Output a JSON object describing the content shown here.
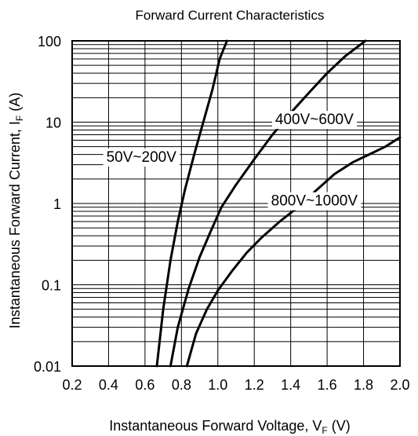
{
  "chart_data": {
    "type": "line",
    "title": "Forward Current Characteristics",
    "xlabel": {
      "main": "Instantaneous Forward Voltage, V",
      "sub": "F",
      "unit": " (V)"
    },
    "ylabel": {
      "main": "Instantaneous Forward Current, I",
      "sub": "F",
      "unit": " (A)"
    },
    "x_scale": "linear",
    "y_scale": "log",
    "xlim": [
      0.2,
      2.0
    ],
    "ylim": [
      0.01,
      100
    ],
    "x_ticks": [
      "0.2",
      "0.4",
      "0.6",
      "0.8",
      "1.0",
      "1.2",
      "1.4",
      "1.6",
      "1.8",
      "2.0"
    ],
    "y_ticks": [
      "0.01",
      "0.1",
      "1",
      "10",
      "100"
    ],
    "grid": true,
    "series": [
      {
        "name": "50V~200V",
        "x": [
          0.665,
          0.7,
          0.74,
          0.78,
          0.82,
          0.87,
          0.92,
          0.97,
          1.01,
          1.05
        ],
        "y": [
          0.01,
          0.05,
          0.2,
          0.6,
          1.5,
          4,
          10,
          25,
          60,
          100
        ]
      },
      {
        "name": "400V~600V",
        "x": [
          0.74,
          0.78,
          0.84,
          0.9,
          0.96,
          1.02,
          1.1,
          1.2,
          1.3,
          1.4,
          1.5,
          1.6,
          1.7,
          1.81
        ],
        "y": [
          0.01,
          0.03,
          0.09,
          0.22,
          0.45,
          0.9,
          1.7,
          3.5,
          7,
          13,
          23,
          40,
          65,
          100
        ]
      },
      {
        "name": "800V~1000V",
        "x": [
          0.83,
          0.88,
          0.94,
          1.0,
          1.08,
          1.16,
          1.24,
          1.34,
          1.44,
          1.54,
          1.64,
          1.74,
          1.84,
          1.92,
          2.0
        ],
        "y": [
          0.01,
          0.025,
          0.05,
          0.085,
          0.15,
          0.25,
          0.38,
          0.6,
          0.9,
          1.45,
          2.3,
          3.2,
          4.1,
          5.0,
          6.5
        ]
      }
    ]
  }
}
